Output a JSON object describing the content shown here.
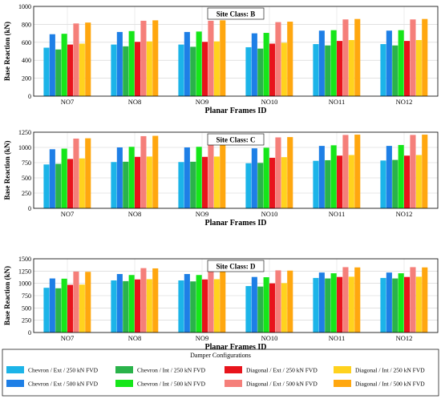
{
  "legend": {
    "title": "Damper Configurations",
    "entries": [
      {
        "name": "Chevron / Ext / 250 kN FVD",
        "color": "#1cb4e8"
      },
      {
        "name": "Chevron / Int / 250 kN FVD",
        "color": "#2ab34a"
      },
      {
        "name": "Diagonal / Ext / 250 kN FVD",
        "color": "#e8141c"
      },
      {
        "name": "Diagonal / Int / 250 kN FVD",
        "color": "#ffd21e"
      },
      {
        "name": "Chevron / Ext / 500 kN FVD",
        "color": "#1e7fe6"
      },
      {
        "name": "Chevron / Int / 500 kN FVD",
        "color": "#16e61a"
      },
      {
        "name": "Diagonal / Ext / 500 kN FVD",
        "color": "#f57f7a"
      },
      {
        "name": "Diagonal / Int / 500 kN FVD",
        "color": "#ffa70f"
      }
    ]
  },
  "chart_data": [
    {
      "type": "bar",
      "title": "Site Class: B",
      "xlabel": "Planar Frames ID",
      "ylabel": "Base Reaction (kN)",
      "ylim": [
        0,
        1000
      ],
      "yticks": [
        0,
        200,
        400,
        600,
        800,
        1000
      ],
      "grid": true,
      "categories": [
        "NO7",
        "NO8",
        "NO9",
        "NO10",
        "NO11",
        "NO12"
      ],
      "series": [
        {
          "name": "Chevron / Ext / 250 kN FVD",
          "values": [
            540,
            575,
            575,
            545,
            580,
            580
          ]
        },
        {
          "name": "Chevron / Ext / 500 kN FVD",
          "values": [
            690,
            715,
            715,
            700,
            730,
            730
          ]
        },
        {
          "name": "Chevron / Int / 250 kN FVD",
          "values": [
            520,
            555,
            550,
            530,
            565,
            565
          ]
        },
        {
          "name": "Chevron / Int / 500 kN FVD",
          "values": [
            695,
            725,
            720,
            705,
            735,
            735
          ]
        },
        {
          "name": "Diagonal / Ext / 250 kN FVD",
          "values": [
            575,
            605,
            605,
            585,
            615,
            615
          ]
        },
        {
          "name": "Diagonal / Ext / 500 kN FVD",
          "values": [
            810,
            840,
            840,
            825,
            855,
            855
          ]
        },
        {
          "name": "Diagonal / Int / 250 kN FVD",
          "values": [
            585,
            610,
            610,
            595,
            625,
            625
          ]
        },
        {
          "name": "Diagonal / Int / 500 kN FVD",
          "values": [
            820,
            845,
            845,
            830,
            860,
            860
          ]
        }
      ]
    },
    {
      "type": "bar",
      "title": "Site Class: C",
      "xlabel": "Planar Frames ID",
      "ylabel": "Base Reaction (kN)",
      "ylim": [
        0,
        1250
      ],
      "yticks": [
        0,
        250,
        500,
        750,
        1000,
        1250
      ],
      "grid": true,
      "categories": [
        "NO7",
        "NO8",
        "NO9",
        "NO10",
        "NO11",
        "NO12"
      ],
      "series": [
        {
          "name": "Chevron / Ext / 250 kN FVD",
          "values": [
            720,
            760,
            760,
            740,
            780,
            785
          ]
        },
        {
          "name": "Chevron / Ext / 500 kN FVD",
          "values": [
            970,
            1000,
            1000,
            985,
            1025,
            1025
          ]
        },
        {
          "name": "Chevron / Int / 250 kN FVD",
          "values": [
            730,
            765,
            765,
            745,
            790,
            795
          ]
        },
        {
          "name": "Chevron / Int / 500 kN FVD",
          "values": [
            980,
            1010,
            1010,
            995,
            1035,
            1040
          ]
        },
        {
          "name": "Diagonal / Ext / 250 kN FVD",
          "values": [
            810,
            845,
            845,
            830,
            865,
            865
          ]
        },
        {
          "name": "Diagonal / Ext / 500 kN FVD",
          "values": [
            1145,
            1185,
            1180,
            1165,
            1205,
            1205
          ]
        },
        {
          "name": "Diagonal / Int / 250 kN FVD",
          "values": [
            820,
            850,
            850,
            840,
            875,
            875
          ]
        },
        {
          "name": "Diagonal / Int / 500 kN FVD",
          "values": [
            1150,
            1190,
            1185,
            1170,
            1210,
            1210
          ]
        }
      ]
    },
    {
      "type": "bar",
      "title": "Site Class: D",
      "xlabel": "Planar Frames ID",
      "ylabel": "Base Reaction (kN)",
      "ylim": [
        0,
        1500
      ],
      "yticks": [
        0,
        250,
        500,
        750,
        1000,
        1250,
        1500
      ],
      "grid": true,
      "categories": [
        "NO7",
        "NO8",
        "NO9",
        "NO10",
        "NO11",
        "NO12"
      ],
      "series": [
        {
          "name": "Chevron / Ext / 250 kN FVD",
          "values": [
            910,
            1060,
            1060,
            945,
            1110,
            1110
          ]
        },
        {
          "name": "Chevron / Ext / 500 kN FVD",
          "values": [
            1100,
            1190,
            1190,
            1130,
            1220,
            1220
          ]
        },
        {
          "name": "Chevron / Int / 250 kN FVD",
          "values": [
            900,
            1045,
            1040,
            935,
            1100,
            1100
          ]
        },
        {
          "name": "Chevron / Int / 500 kN FVD",
          "values": [
            1095,
            1170,
            1170,
            1125,
            1205,
            1205
          ]
        },
        {
          "name": "Diagonal / Ext / 250 kN FVD",
          "values": [
            970,
            1080,
            1080,
            1000,
            1130,
            1130
          ]
        },
        {
          "name": "Diagonal / Ext / 500 kN FVD",
          "values": [
            1240,
            1310,
            1310,
            1265,
            1330,
            1330
          ]
        },
        {
          "name": "Diagonal / Int / 250 kN FVD",
          "values": [
            975,
            1085,
            1085,
            1005,
            1135,
            1135
          ]
        },
        {
          "name": "Diagonal / Int / 500 kN FVD",
          "values": [
            1235,
            1305,
            1300,
            1260,
            1325,
            1325
          ]
        }
      ]
    }
  ]
}
